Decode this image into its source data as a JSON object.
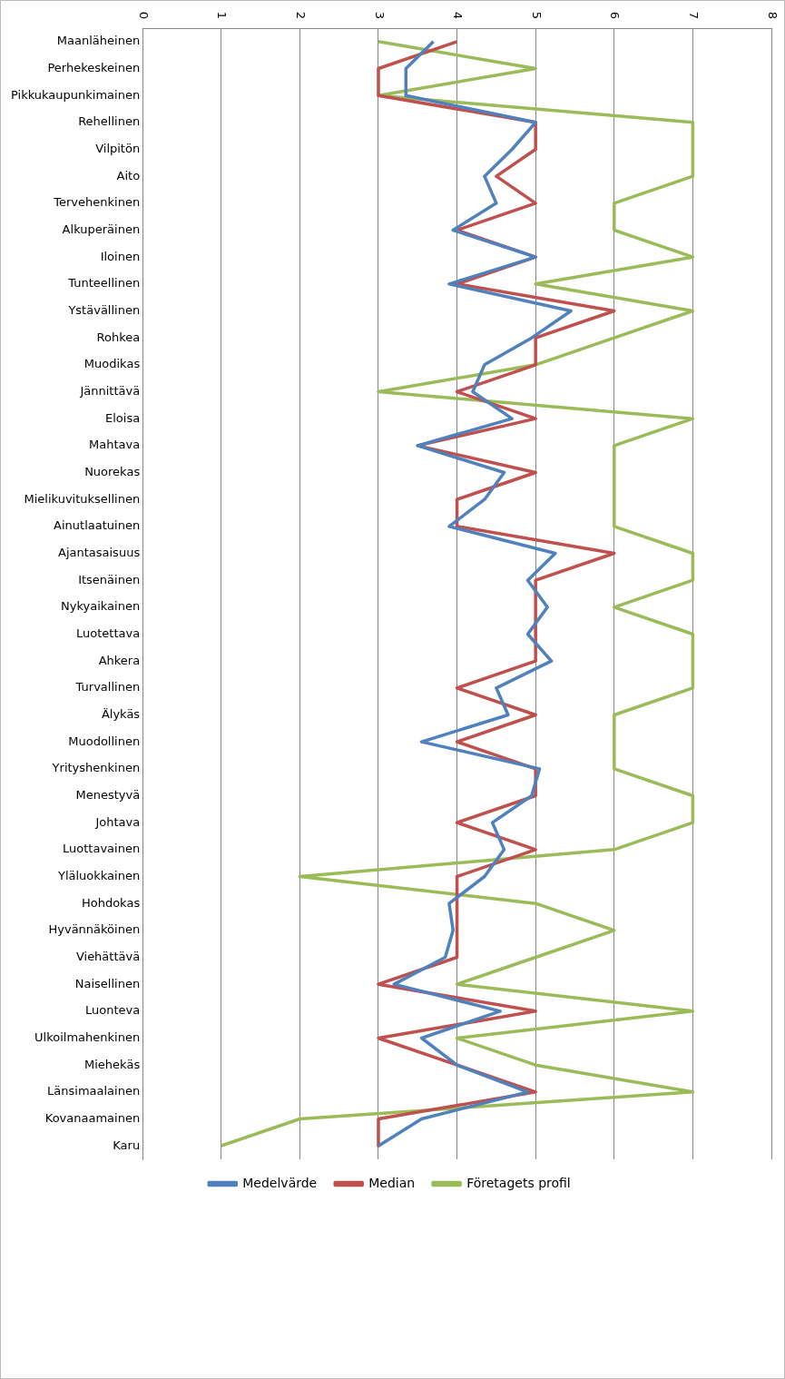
{
  "chart_data": {
    "type": "line",
    "orientation": "horizontal",
    "categories": [
      "Maanläheinen",
      "Perhekeskeinen",
      "Pikkukaupunkimainen",
      "Rehellinen",
      "Vilpitön",
      "Aito",
      "Tervehenkinen",
      "Alkuperäinen",
      "Iloinen",
      "Tunteellinen",
      "Ystävällinen",
      "Rohkea",
      "Muodikas",
      "Jännittävä",
      "Eloisa",
      "Mahtava",
      "Nuorekas",
      "Mielikuvituksellinen",
      "Ainutlaatuinen",
      "Ajantasaisuus",
      "Itsenäinen",
      "Nykyaikainen",
      "Luotettava",
      "Ahkera",
      "Turvallinen",
      "Älykäs",
      "Muodollinen",
      "Yrityshenkinen",
      "Menestyvä",
      "Johtava",
      "Luottavainen",
      "Yläluokkainen",
      "Hohdokas",
      "Hyvännäköinen",
      "Viehättävä",
      "Naisellinen",
      "Luonteva",
      "Ulkoilmahenkinen",
      "Miehekäs",
      "Länsimaalainen",
      "Kovanaamainen",
      "Karu"
    ],
    "series": [
      {
        "name": "Medelvärde",
        "color": "#4f81bd",
        "values": [
          3.7,
          3.35,
          3.35,
          5,
          4.7,
          4.35,
          4.5,
          3.95,
          5,
          3.9,
          5.45,
          4.95,
          4.35,
          4.2,
          4.7,
          3.5,
          4.6,
          4.35,
          3.9,
          5.25,
          4.9,
          5.15,
          4.9,
          5.2,
          4.5,
          4.65,
          3.55,
          5.05,
          4.95,
          4.45,
          4.6,
          4.35,
          3.9,
          3.95,
          3.85,
          3.2,
          4.55,
          3.55,
          4,
          4.9,
          3.55,
          3
        ]
      },
      {
        "name": "Median",
        "color": "#c0504d",
        "values": [
          4,
          3,
          3,
          5,
          5,
          4.5,
          5,
          4,
          5,
          4,
          6,
          5,
          5,
          4,
          5,
          3.5,
          5,
          4,
          4,
          6,
          5,
          5,
          5,
          5,
          4,
          5,
          4,
          5,
          5,
          4,
          5,
          4,
          4,
          4,
          4,
          3,
          5,
          3,
          4,
          5,
          3,
          3
        ]
      },
      {
        "name": "Företagets profil",
        "color": "#9bbb59",
        "values": [
          3,
          5,
          3,
          7,
          7,
          7,
          6,
          6,
          7,
          5,
          7,
          6,
          5,
          3,
          7,
          6,
          6,
          6,
          6,
          7,
          7,
          6,
          7,
          7,
          7,
          6,
          6,
          6,
          7,
          7,
          6,
          2,
          5,
          6,
          5,
          4,
          7,
          4,
          5,
          7,
          2,
          1
        ]
      }
    ],
    "xlim": [
      0,
      8
    ],
    "xticks": [
      0,
      1,
      2,
      3,
      4,
      5,
      6,
      7,
      8
    ],
    "grid": "x",
    "legend": "bottom",
    "marker": "none",
    "line_style": "solid"
  }
}
